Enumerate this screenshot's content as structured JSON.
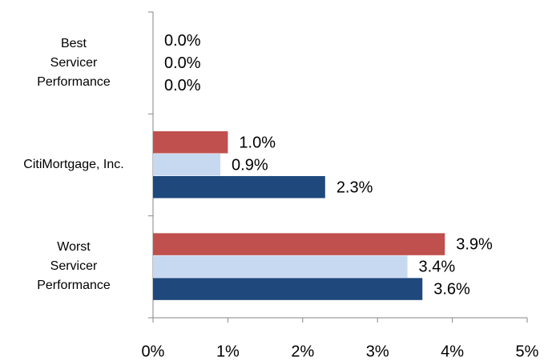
{
  "chart_data": {
    "type": "hbar",
    "categories": [
      "Best\nServicer\nPerformance",
      "CitiMortgage, Inc.",
      "Worst\nServicer\nPerformance"
    ],
    "series": [
      {
        "color": "#c0504d",
        "values": [
          0.0,
          1.0,
          3.9
        ],
        "value_labels": [
          "0.0%",
          "1.0%",
          "3.9%"
        ]
      },
      {
        "color": "#c6d9f1",
        "values": [
          0.0,
          0.9,
          3.4
        ],
        "value_labels": [
          "0.0%",
          "0.9%",
          "3.4%"
        ]
      },
      {
        "color": "#1f497d",
        "values": [
          0.0,
          2.3,
          3.6
        ],
        "value_labels": [
          "0.0%",
          "2.3%",
          "3.6%"
        ]
      }
    ],
    "xlim": [
      0,
      5
    ],
    "xticks": [
      {
        "value": 0,
        "label": "0%"
      },
      {
        "value": 1,
        "label": "1%"
      },
      {
        "value": 2,
        "label": "2%"
      },
      {
        "value": 3,
        "label": "3%"
      },
      {
        "value": 4,
        "label": "4%"
      },
      {
        "value": 5,
        "label": "5%"
      }
    ]
  }
}
